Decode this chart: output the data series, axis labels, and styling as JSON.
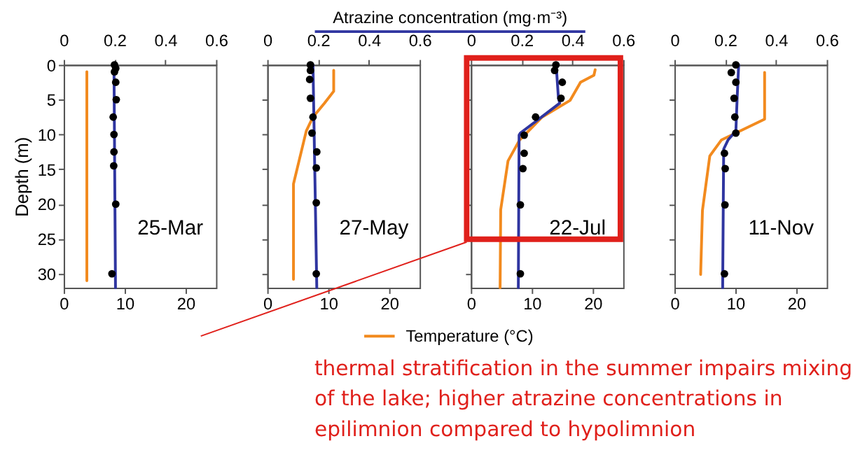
{
  "chart_data": [
    {
      "type": "line",
      "ylabel": "Depth (m)",
      "xlim": [
        0,
        25
      ],
      "xticks": [
        0,
        10,
        20
      ],
      "x2lim": [
        0,
        0.6
      ],
      "x2ticks": [
        0,
        0.2,
        0.4,
        0.6
      ],
      "ylim": [
        32,
        0
      ],
      "yticks": [
        0,
        5,
        10,
        15,
        20,
        25,
        30
      ],
      "annotations": [
        "25-Mar"
      ],
      "series": [
        {
          "type": "line",
          "axis": "x2",
          "color": "#2f35a0",
          "x": [
            0.198,
            0.204
          ],
          "values": [
            0,
            32
          ]
        },
        {
          "type": "scatter",
          "axis": "x2",
          "color": "#000000",
          "marker": "circle",
          "x": [
            0.2,
            0.205,
            0.2,
            0.205,
            0.207,
            0.195,
            0.198,
            0.198,
            0.197,
            0.205,
            0.19
          ],
          "values": [
            0,
            0.5,
            1,
            2.5,
            5,
            7.5,
            10,
            12.5,
            14.5,
            20,
            30
          ]
        },
        {
          "type": "line",
          "color": "#f28a1e",
          "x": [
            3.8,
            3.8
          ],
          "values": [
            1,
            31
          ]
        }
      ]
    },
    {
      "type": "line",
      "tick_labels": "x",
      "xlim": [
        0,
        25
      ],
      "xticks": [
        0,
        10,
        20
      ],
      "x2lim": [
        0,
        0.6
      ],
      "x2ticks": [
        0,
        0.2,
        0.4,
        0.6
      ],
      "ylim": [
        32,
        0
      ],
      "yticks": [
        0,
        5,
        10,
        15,
        20,
        25,
        30
      ],
      "annotations": [
        "27-May"
      ],
      "series": [
        {
          "type": "line",
          "axis": "x2",
          "color": "#2f35a0",
          "x": [
            0.18,
            0.195
          ],
          "values": [
            0,
            32
          ]
        },
        {
          "type": "scatter",
          "axis": "x2",
          "color": "#000000",
          "marker": "circle",
          "x": [
            0.17,
            0.17,
            0.167,
            0.17,
            0.18,
            0.176,
            0.195,
            0.193,
            0.193,
            0.193
          ],
          "values": [
            0,
            0.8,
            2.1,
            4.8,
            7.5,
            9.8,
            12.5,
            14.8,
            19.8,
            30
          ]
        },
        {
          "type": "line",
          "color": "#f28a1e",
          "x": [
            10.9,
            10.9,
            9.4,
            7.5,
            6.4,
            4.3,
            4.3
          ],
          "values": [
            0.8,
            3.8,
            5.5,
            7.5,
            9.5,
            17.1,
            30.8
          ]
        }
      ]
    },
    {
      "type": "line",
      "tick_labels": "x",
      "x2label": "Atrazine concentration (mg·m⁻³)",
      "legend": "bottom",
      "xlim": [
        0,
        25
      ],
      "xticks": [
        0,
        10,
        20
      ],
      "x2lim": [
        0,
        0.6
      ],
      "x2ticks": [
        0,
        0.2,
        0.4,
        0.6
      ],
      "ylim": [
        32,
        0
      ],
      "yticks": [
        0,
        5,
        10,
        15,
        20,
        25,
        30
      ],
      "annotations": [
        "22-Jul",
        "thermal stratification in the summer impairs mixing of the lake; higher atrazine concentrations in epilimnion compared to hypolimnion"
      ],
      "series": [
        {
          "type": "line",
          "axis": "x2",
          "color": "#2f35a0",
          "x": [
            0.336,
            0.345,
            0.35,
            0.195,
            0.19,
            0.187
          ],
          "values": [
            0,
            4.8,
            5.5,
            9.8,
            10.1,
            32
          ]
        },
        {
          "type": "scatter",
          "axis": "x2",
          "color": "#000000",
          "marker": "circle",
          "x": [
            0.335,
            0.33,
            0.36,
            0.355,
            0.255,
            0.21,
            0.21,
            0.205,
            0.195,
            0.195
          ],
          "values": [
            0,
            0.8,
            2.5,
            4.8,
            7.5,
            10.1,
            12.7,
            14.9,
            20.1,
            30
          ]
        },
        {
          "type": "line",
          "name": "Temperature (°C)",
          "color": "#f28a1e",
          "x": [
            20.4,
            20.2,
            18,
            16.3,
            11.7,
            8,
            6.1,
            4.9,
            4.8
          ],
          "values": [
            0.7,
            1.5,
            2.5,
            5.1,
            7.5,
            10.8,
            13.8,
            20.8,
            32
          ]
        }
      ]
    },
    {
      "type": "line",
      "tick_labels": "x",
      "xlim": [
        0,
        25
      ],
      "xticks": [
        0,
        10,
        20
      ],
      "x2lim": [
        0,
        0.6
      ],
      "x2ticks": [
        0,
        0.2,
        0.4,
        0.6
      ],
      "ylim": [
        32,
        0
      ],
      "yticks": [
        0,
        5,
        10,
        15,
        20,
        25,
        30
      ],
      "annotations": [
        "11-Nov"
      ],
      "series": [
        {
          "type": "line",
          "axis": "x2",
          "color": "#2f35a0",
          "x": [
            0.253,
            0.247,
            0.242,
            0.211,
            0.194,
            0.19
          ],
          "values": [
            0,
            4.8,
            9.5,
            10.8,
            12.1,
            32
          ]
        },
        {
          "type": "scatter",
          "axis": "x2",
          "color": "#000000",
          "marker": "circle",
          "x": [
            0.242,
            0.224,
            0.242,
            0.235,
            0.238,
            0.242,
            0.197,
            0.2,
            0.199,
            0.197
          ],
          "values": [
            0,
            1.1,
            2.5,
            4.8,
            7.5,
            9.8,
            12.7,
            14.9,
            20.1,
            30
          ]
        },
        {
          "type": "line",
          "color": "#f28a1e",
          "x": [
            14.8,
            14.8,
            7.7,
            5.8,
            4.6,
            4.3
          ],
          "values": [
            1.1,
            7.8,
            10.8,
            13.1,
            20.9,
            30.1
          ]
        }
      ]
    }
  ]
}
